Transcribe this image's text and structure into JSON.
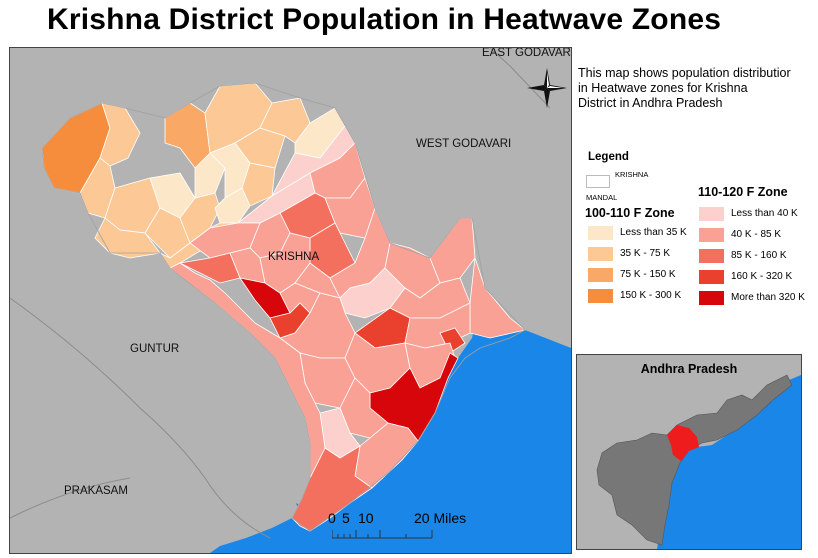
{
  "title": "Krishna District Population in Heatwave Zones",
  "map": {
    "labels": {
      "east_godavari": "EAST GODAVARI",
      "west_godavari": "WEST GODAVARI",
      "krishna": "KRISHNA",
      "guntur": "GUNTUR",
      "prakasam": "PRAKASAM"
    },
    "colors": {
      "land": "#b3b3b3",
      "sea": "#1a87e8",
      "border": "#8c8c8c"
    }
  },
  "description": [
    "This map shows population distributior",
    "in Heatwave zones for Krishna",
    "District in Andhra Pradesh"
  ],
  "legend": {
    "title": "Legend",
    "krishna_label": "KRISHNA",
    "mandal_label": "MANDAL",
    "zone_a": {
      "title": "100-110 F Zone",
      "classes": [
        {
          "label": "Less than 35 K",
          "color": "#fde7c9"
        },
        {
          "label": "35 K - 75 K",
          "color": "#fcc896"
        },
        {
          "label": "75 K - 150 K",
          "color": "#faa866"
        },
        {
          "label": "150 K - 300 K",
          "color": "#f58d3c"
        }
      ]
    },
    "zone_b": {
      "title": "110-120 F Zone",
      "classes": [
        {
          "label": "Less than 40 K",
          "color": "#fcd0cd"
        },
        {
          "label": "40 K - 85 K",
          "color": "#f9a195"
        },
        {
          "label": "85 K - 160 K",
          "color": "#f3705f"
        },
        {
          "label": "160 K - 320 K",
          "color": "#e9412e"
        },
        {
          "label": "More than 320 K",
          "color": "#d7060a"
        }
      ]
    }
  },
  "inset": {
    "title": "Andhra Pradesh",
    "highlight_color": "#ee1c1c"
  },
  "scale": {
    "ticks": [
      "0",
      "5",
      "10",
      "20 Miles"
    ]
  }
}
